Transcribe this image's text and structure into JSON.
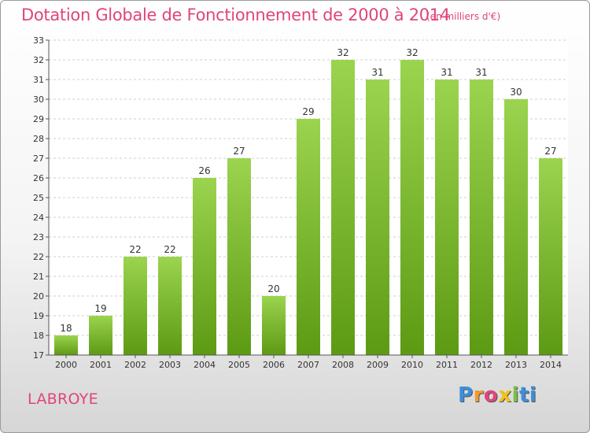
{
  "chart_data": {
    "type": "bar",
    "title": "Dotation Globale de Fonctionnement de 2000 à 2014",
    "subtitle": "(en milliers d'€)",
    "categories": [
      "2000",
      "2001",
      "2002",
      "2003",
      "2004",
      "2005",
      "2006",
      "2007",
      "2008",
      "2009",
      "2010",
      "2011",
      "2012",
      "2013",
      "2014"
    ],
    "values": [
      18,
      19,
      22,
      22,
      26,
      27,
      20,
      29,
      32,
      31,
      32,
      31,
      31,
      30,
      27
    ],
    "ylim": [
      17,
      33
    ],
    "yticks": [
      17,
      18,
      19,
      20,
      21,
      22,
      23,
      24,
      25,
      26,
      27,
      28,
      29,
      30,
      31,
      32,
      33
    ],
    "grid": true,
    "bar_color": "#7ab82e",
    "data_labels": true
  },
  "commune": "LABROYE",
  "logo": [
    "P",
    "r",
    "o",
    "x",
    "i",
    "ti"
  ],
  "colors": {
    "title": "#e0457a",
    "bar_top": "#9bd44f",
    "bar_bottom": "#5d9a14"
  }
}
